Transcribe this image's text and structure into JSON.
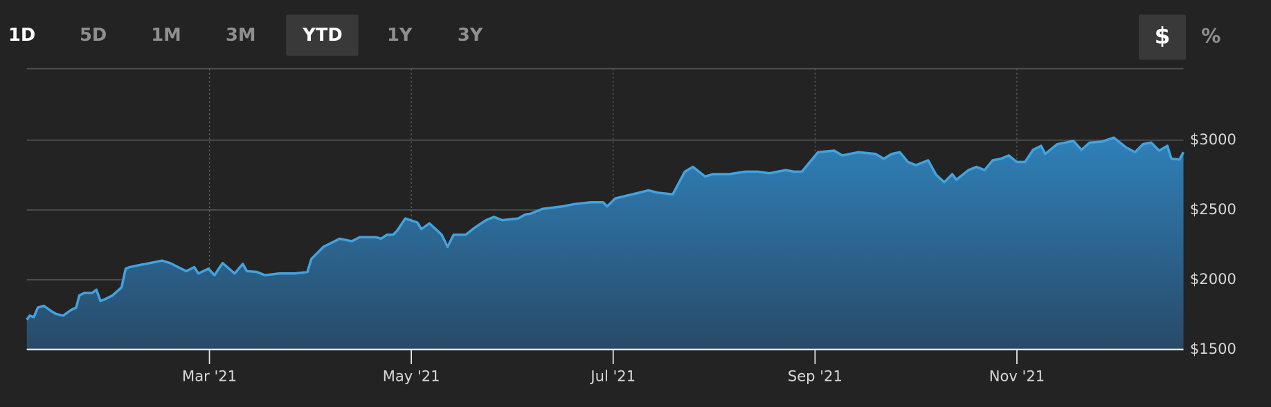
{
  "range_buttons": [
    "1D",
    "5D",
    "1M",
    "3M",
    "YTD",
    "1Y",
    "3Y"
  ],
  "unit_buttons": [
    "$",
    "%"
  ],
  "chart_data": {
    "type": "area",
    "color": "#41a3e0",
    "x": [
      1.19,
      1.22,
      1.26,
      1.3,
      1.36,
      1.44,
      1.48,
      1.55,
      1.63,
      1.68,
      1.71,
      1.76,
      1.84,
      1.88,
      1.92,
      1.96,
      2.04,
      2.13,
      2.17,
      2.21,
      2.29,
      2.41,
      2.53,
      2.61,
      2.77,
      2.85,
      2.89,
      2.99,
      3.05,
      3.13,
      3.25,
      3.33,
      3.37,
      3.47,
      3.55,
      3.69,
      3.85,
      3.97,
      4.01,
      4.13,
      4.21,
      4.29,
      4.41,
      4.49,
      4.65,
      4.7,
      4.76,
      4.82,
      4.86,
      4.94,
      5.06,
      5.1,
      5.18,
      5.3,
      5.36,
      5.42,
      5.54,
      5.62,
      5.74,
      5.82,
      5.9,
      6.06,
      6.13,
      6.18,
      6.3,
      6.5,
      6.62,
      6.78,
      6.9,
      6.94,
      7.02,
      7.19,
      7.35,
      7.44,
      7.59,
      7.71,
      7.79,
      7.91,
      7.99,
      8.15,
      8.31,
      8.43,
      8.55,
      8.63,
      8.71,
      8.79,
      8.87,
      9.03,
      9.19,
      9.27,
      9.43,
      9.6,
      9.68,
      9.76,
      9.84,
      9.92,
      10.0,
      10.12,
      10.2,
      10.28,
      10.36,
      10.4,
      10.52,
      10.6,
      10.68,
      10.76,
      10.84,
      10.92,
      11.0,
      11.08,
      11.16,
      11.24,
      11.28,
      11.4,
      11.48,
      11.56,
      11.64,
      11.72,
      11.84,
      11.96,
      12.08,
      12.17,
      12.25,
      12.33,
      12.41,
      12.49,
      12.53,
      12.61,
      12.65
    ],
    "values": [
      1714,
      1743,
      1732,
      1801,
      1813,
      1772,
      1755,
      1743,
      1784,
      1801,
      1888,
      1906,
      1906,
      1929,
      1848,
      1859,
      1888,
      1946,
      2079,
      2091,
      2103,
      2120,
      2137,
      2120,
      2062,
      2091,
      2045,
      2079,
      2033,
      2120,
      2045,
      2114,
      2062,
      2056,
      2033,
      2045,
      2045,
      2056,
      2149,
      2236,
      2265,
      2294,
      2276,
      2305,
      2305,
      2294,
      2323,
      2323,
      2352,
      2439,
      2410,
      2363,
      2404,
      2323,
      2236,
      2323,
      2323,
      2369,
      2427,
      2450,
      2427,
      2439,
      2468,
      2473,
      2508,
      2526,
      2543,
      2555,
      2555,
      2526,
      2583,
      2612,
      2641,
      2624,
      2612,
      2775,
      2809,
      2740,
      2757,
      2757,
      2775,
      2775,
      2763,
      2775,
      2786,
      2775,
      2775,
      2914,
      2925,
      2891,
      2914,
      2902,
      2867,
      2902,
      2914,
      2844,
      2821,
      2856,
      2752,
      2699,
      2757,
      2717,
      2786,
      2809,
      2786,
      2856,
      2867,
      2891,
      2844,
      2844,
      2931,
      2960,
      2902,
      2972,
      2983,
      2995,
      2931,
      2983,
      2989,
      3018,
      2949,
      2914,
      2972,
      2983,
      2925,
      2960,
      2867,
      2862,
      2914
    ],
    "xlim": [
      1.19,
      12.65
    ],
    "xticks": [
      {
        "value": 3,
        "label": "Mar '21"
      },
      {
        "value": 5,
        "label": "May '21"
      },
      {
        "value": 7,
        "label": "Jul '21"
      },
      {
        "value": 9,
        "label": "Sep '21"
      },
      {
        "value": 11,
        "label": "Nov '21"
      }
    ],
    "ylim": [
      1500,
      3500
    ],
    "yticks": [
      {
        "value": 1500,
        "label": "$1500"
      },
      {
        "value": 2000,
        "label": "$2000"
      },
      {
        "value": 2500,
        "label": "$2500"
      },
      {
        "value": 3000,
        "label": "$3000"
      }
    ],
    "grid": true
  }
}
